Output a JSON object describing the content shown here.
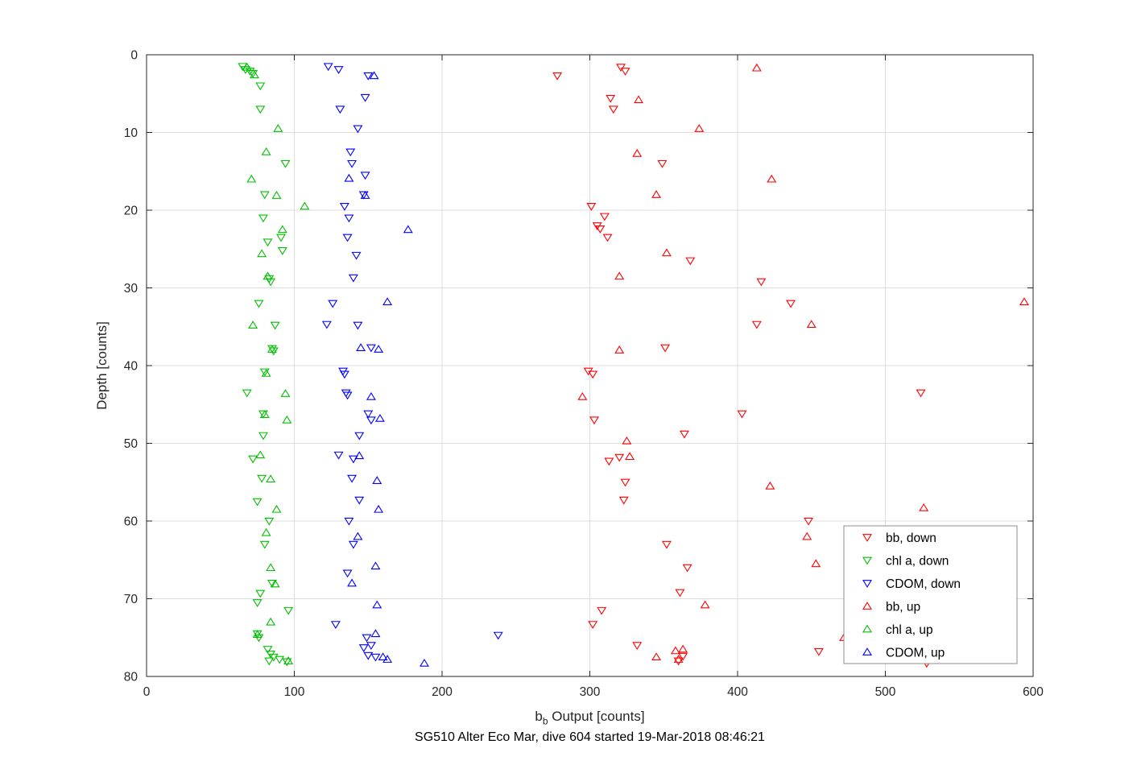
{
  "figure": {
    "title": "SG510 Alter Eco Mar, dive 604 started 19-Mar-2018 08:46:21",
    "ylabel": "Depth [counts]",
    "xlabel_base": "b",
    "xlabel_sub": "b",
    "xlabel_rest": " Output [counts]"
  },
  "chart_data": {
    "type": "scatter",
    "title": "SG510 Alter Eco Mar, dive 604 started 19-Mar-2018 08:46:21",
    "xlabel": "b_b Output [counts]",
    "ylabel": "Depth [counts]",
    "xlim": [
      0,
      600
    ],
    "ylim": [
      0,
      80
    ],
    "y_axis_reversed": true,
    "grid": true,
    "xticks": [
      0,
      100,
      200,
      300,
      400,
      500,
      600
    ],
    "yticks": [
      0,
      10,
      20,
      30,
      40,
      50,
      60,
      70,
      80
    ],
    "legend_position": "lower-right-inside",
    "marker_style": "open-triangle",
    "style": {
      "grid_color": "#dcdcdc",
      "axis_color": "#262626",
      "legend_border_color": "#8c8c8c",
      "background": "#ffffff"
    },
    "series": [
      {
        "name": "bb, down",
        "color": "#ff0000",
        "marker": "triangle-down",
        "points": [
          [
            278,
            2.7
          ],
          [
            321,
            1.6
          ],
          [
            324,
            2.1
          ],
          [
            314,
            5.6
          ],
          [
            316,
            7.0
          ],
          [
            349,
            14.0
          ],
          [
            301,
            19.5
          ],
          [
            310,
            20.8
          ],
          [
            305,
            22.0
          ],
          [
            307,
            22.4
          ],
          [
            312,
            23.5
          ],
          [
            368,
            26.5
          ],
          [
            416,
            29.2
          ],
          [
            436,
            32.0
          ],
          [
            413,
            34.7
          ],
          [
            351,
            37.7
          ],
          [
            299,
            40.7
          ],
          [
            302,
            41.1
          ],
          [
            524,
            43.5
          ],
          [
            403,
            46.2
          ],
          [
            303,
            47.0
          ],
          [
            364,
            48.8
          ],
          [
            320,
            51.8
          ],
          [
            313,
            52.3
          ],
          [
            324,
            55.0
          ],
          [
            323,
            57.3
          ],
          [
            448,
            60.0
          ],
          [
            352,
            63.0
          ],
          [
            366,
            66.0
          ],
          [
            361,
            69.2
          ],
          [
            308,
            71.5
          ],
          [
            302,
            73.3
          ],
          [
            332,
            76.0
          ],
          [
            455,
            76.8
          ],
          [
            363,
            77.4
          ],
          [
            360,
            78.0
          ],
          [
            528,
            78.3
          ]
        ]
      },
      {
        "name": "chl a, down",
        "color": "#00bf00",
        "marker": "triangle-down",
        "points": [
          [
            65,
            1.5
          ],
          [
            67,
            1.9
          ],
          [
            70,
            2.1
          ],
          [
            72,
            2.4
          ],
          [
            77,
            4.0
          ],
          [
            77,
            7.0
          ],
          [
            94,
            14.0
          ],
          [
            80,
            18.0
          ],
          [
            79,
            21.0
          ],
          [
            91,
            23.5
          ],
          [
            82,
            24.1
          ],
          [
            92,
            25.2
          ],
          [
            83,
            28.8
          ],
          [
            84,
            29.2
          ],
          [
            76,
            32.0
          ],
          [
            87,
            34.8
          ],
          [
            85,
            37.8
          ],
          [
            86,
            38.1
          ],
          [
            80,
            40.8
          ],
          [
            68,
            43.5
          ],
          [
            79,
            46.2
          ],
          [
            79,
            49.0
          ],
          [
            72,
            52.0
          ],
          [
            78,
            54.5
          ],
          [
            75,
            57.5
          ],
          [
            83,
            60.0
          ],
          [
            80,
            63.0
          ],
          [
            85,
            68.0
          ],
          [
            77,
            69.3
          ],
          [
            75,
            70.5
          ],
          [
            96,
            71.5
          ],
          [
            75,
            74.5
          ],
          [
            76,
            75.0
          ],
          [
            82,
            76.5
          ],
          [
            84,
            77.1
          ],
          [
            86,
            77.5
          ],
          [
            83,
            78.0
          ],
          [
            90,
            77.8
          ],
          [
            95,
            78.1
          ]
        ]
      },
      {
        "name": "CDOM, down",
        "color": "#0000ff",
        "marker": "triangle-down",
        "points": [
          [
            123,
            1.5
          ],
          [
            130,
            1.9
          ],
          [
            150,
            2.7
          ],
          [
            148,
            5.5
          ],
          [
            131,
            7.0
          ],
          [
            143,
            9.5
          ],
          [
            138,
            12.5
          ],
          [
            139,
            14.0
          ],
          [
            148,
            15.5
          ],
          [
            147,
            18.0
          ],
          [
            134,
            19.5
          ],
          [
            137,
            21.0
          ],
          [
            136,
            23.5
          ],
          [
            142,
            25.8
          ],
          [
            140,
            28.7
          ],
          [
            126,
            32.0
          ],
          [
            122,
            34.7
          ],
          [
            143,
            34.8
          ],
          [
            152,
            37.7
          ],
          [
            133,
            40.7
          ],
          [
            134,
            41.1
          ],
          [
            135,
            43.5
          ],
          [
            136,
            43.8
          ],
          [
            150,
            46.2
          ],
          [
            152,
            47.0
          ],
          [
            144,
            49.0
          ],
          [
            130,
            51.5
          ],
          [
            140,
            52.0
          ],
          [
            139,
            54.5
          ],
          [
            144,
            57.3
          ],
          [
            137,
            60.0
          ],
          [
            140,
            63.0
          ],
          [
            136,
            66.7
          ],
          [
            128,
            73.3
          ],
          [
            238,
            74.7
          ],
          [
            149,
            75.0
          ],
          [
            152,
            76.0
          ],
          [
            147,
            76.3
          ],
          [
            150,
            77.3
          ],
          [
            155,
            77.5
          ]
        ]
      },
      {
        "name": "bb, up",
        "color": "#ff0000",
        "marker": "triangle-up",
        "points": [
          [
            413,
            1.7
          ],
          [
            333,
            5.8
          ],
          [
            374,
            9.5
          ],
          [
            332,
            12.7
          ],
          [
            423,
            16.0
          ],
          [
            345,
            18.0
          ],
          [
            352,
            25.5
          ],
          [
            320,
            28.5
          ],
          [
            594,
            31.8
          ],
          [
            450,
            34.7
          ],
          [
            320,
            38.0
          ],
          [
            295,
            44.0
          ],
          [
            325,
            49.7
          ],
          [
            327,
            51.7
          ],
          [
            422,
            55.5
          ],
          [
            526,
            58.3
          ],
          [
            447,
            62.0
          ],
          [
            453,
            65.5
          ],
          [
            378,
            70.8
          ],
          [
            472,
            75.0
          ],
          [
            345,
            77.5
          ],
          [
            358,
            76.7
          ],
          [
            363,
            76.5
          ],
          [
            360,
            77.8
          ]
        ]
      },
      {
        "name": "chl a, up",
        "color": "#00bf00",
        "marker": "triangle-up",
        "points": [
          [
            68,
            1.6
          ],
          [
            73,
            2.6
          ],
          [
            89,
            9.5
          ],
          [
            81,
            12.5
          ],
          [
            71,
            16.0
          ],
          [
            88,
            18.1
          ],
          [
            107,
            19.5
          ],
          [
            92,
            22.5
          ],
          [
            78,
            25.6
          ],
          [
            82,
            28.5
          ],
          [
            72,
            34.8
          ],
          [
            85,
            37.9
          ],
          [
            81,
            41.0
          ],
          [
            94,
            43.6
          ],
          [
            80,
            46.3
          ],
          [
            95,
            47.0
          ],
          [
            77,
            51.5
          ],
          [
            84,
            54.6
          ],
          [
            88,
            58.5
          ],
          [
            81,
            61.5
          ],
          [
            84,
            66.0
          ],
          [
            87,
            68.1
          ],
          [
            84,
            73.0
          ],
          [
            75,
            74.6
          ],
          [
            96,
            78.0
          ]
        ]
      },
      {
        "name": "CDOM, up",
        "color": "#0000ff",
        "marker": "triangle-up",
        "points": [
          [
            154,
            2.7
          ],
          [
            137,
            15.9
          ],
          [
            148,
            18.1
          ],
          [
            177,
            22.5
          ],
          [
            163,
            31.8
          ],
          [
            145,
            37.7
          ],
          [
            157,
            37.9
          ],
          [
            152,
            44.0
          ],
          [
            158,
            46.8
          ],
          [
            144,
            51.6
          ],
          [
            156,
            54.8
          ],
          [
            157,
            58.5
          ],
          [
            143,
            62.0
          ],
          [
            155,
            65.8
          ],
          [
            139,
            68.0
          ],
          [
            156,
            70.8
          ],
          [
            155,
            74.5
          ],
          [
            160,
            77.5
          ],
          [
            163,
            77.8
          ],
          [
            188,
            78.3
          ]
        ]
      }
    ]
  }
}
